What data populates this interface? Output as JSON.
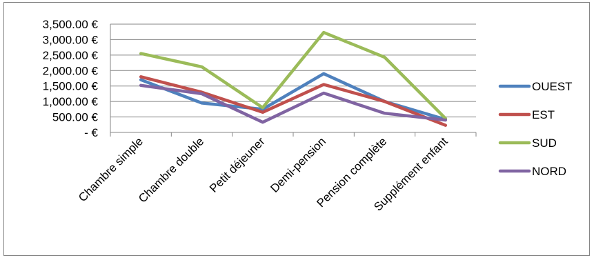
{
  "chart_data": {
    "type": "line",
    "categories": [
      "Chambre simple",
      "Chambre double",
      "Petit déjeuner",
      "Demi-pension",
      "Pension complète",
      "Supplément enfant"
    ],
    "series": [
      {
        "name": "OUEST",
        "color": "#4F81BD",
        "values": [
          1700,
          950,
          750,
          1900,
          1000,
          420
        ]
      },
      {
        "name": "EST",
        "color": "#C0504D",
        "values": [
          1800,
          1300,
          650,
          1550,
          1000,
          230
        ]
      },
      {
        "name": "SUD",
        "color": "#9BBB59",
        "values": [
          2550,
          2120,
          800,
          3230,
          2430,
          450
        ]
      },
      {
        "name": "NORD",
        "color": "#8064A2",
        "values": [
          1520,
          1250,
          330,
          1270,
          620,
          400
        ]
      }
    ],
    "ylim": [
      0,
      3500
    ],
    "yticks": [
      0,
      500,
      1000,
      1500,
      2000,
      2500,
      3000,
      3500
    ],
    "ytick_labels": [
      "-   €",
      "500.00 €",
      "1,000.00 €",
      "1,500.00 €",
      "2,000.00 €",
      "2,500.00 €",
      "3,000.00 €",
      "3,500.00 €"
    ],
    "title": "",
    "xlabel": "",
    "ylabel": "",
    "grid": "horizontal",
    "legend_position": "right"
  }
}
